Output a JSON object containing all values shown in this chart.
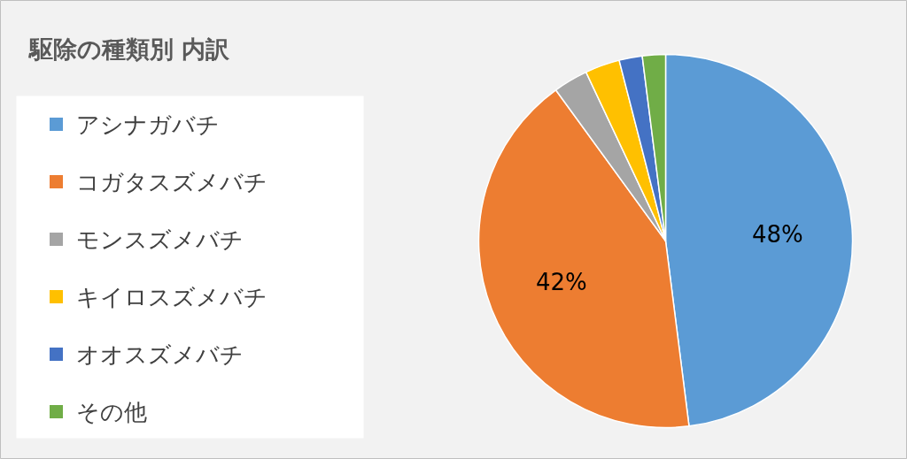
{
  "chart_data": {
    "type": "pie",
    "title": "駆除の種類別 内訳",
    "categories": [
      "アシナガバチ",
      "コガタスズメバチ",
      "モンスズメバチ",
      "キイロスズメバチ",
      "オオスズメバチ",
      "その他"
    ],
    "values": [
      48,
      42,
      3,
      3,
      2,
      2
    ],
    "colors": [
      "#5b9bd5",
      "#ed7d31",
      "#a5a5a5",
      "#ffc000",
      "#4472c4",
      "#70ad47"
    ],
    "value_labels": [
      "48%",
      "42%",
      null,
      null,
      null,
      null
    ],
    "legend": "left"
  }
}
